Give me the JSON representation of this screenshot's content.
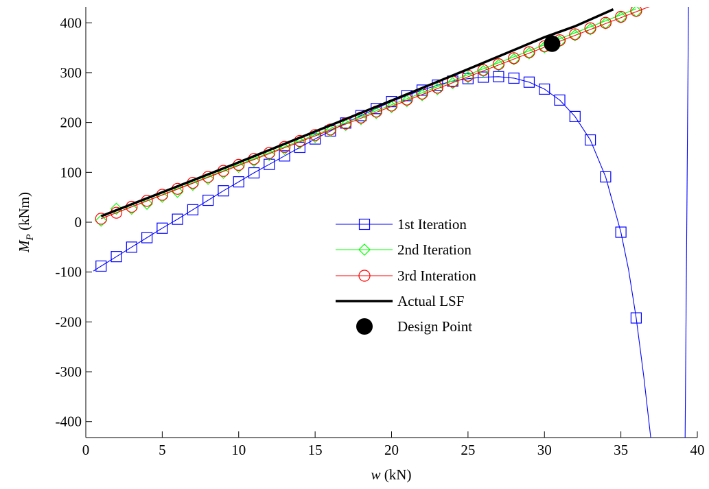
{
  "chart_data": {
    "type": "line",
    "x_var": "w",
    "x_unit": " (kN)",
    "y_var": "M",
    "y_sub": "P",
    "y_unit": " (kNm)",
    "xlim": [
      0,
      40
    ],
    "ylim": [
      -432,
      432
    ],
    "xticks": [
      0,
      5,
      10,
      15,
      20,
      25,
      30,
      35,
      40
    ],
    "yticks": [
      -400,
      -300,
      -200,
      -100,
      0,
      100,
      200,
      300,
      400
    ],
    "grid": false,
    "legend_position": "center",
    "series": [
      {
        "name": "1st Iteration",
        "color": "#0000ff",
        "marker": "square",
        "curve": {
          "x": [
            0.5,
            1,
            2,
            3,
            4,
            5,
            6,
            7,
            8,
            9,
            10,
            11,
            12,
            13,
            14,
            15,
            16,
            17,
            18,
            19,
            20,
            21,
            22,
            23,
            24,
            25,
            26,
            27,
            28,
            29,
            30,
            31,
            32,
            33,
            34,
            35,
            35.5,
            36,
            36.5,
            36.95
          ],
          "y": [
            -98,
            -88,
            -69,
            -50,
            -31,
            -12,
            6,
            25,
            44,
            63,
            81,
            99,
            116,
            133,
            150,
            167,
            183,
            199,
            214,
            228,
            242,
            254,
            265,
            275,
            283,
            288,
            291,
            292,
            289,
            281,
            267,
            245,
            212,
            165,
            91,
            -20,
            -95,
            -192,
            -310,
            -432
          ]
        },
        "markers": {
          "x": [
            1,
            2,
            3,
            4,
            5,
            6,
            7,
            8,
            9,
            10,
            11,
            12,
            13,
            14,
            15,
            16,
            17,
            18,
            19,
            20,
            21,
            22,
            23,
            24,
            25,
            26,
            27,
            28,
            29,
            30,
            31,
            32,
            33,
            34,
            35,
            36
          ],
          "y": [
            -88,
            -69,
            -50,
            -31,
            -12,
            6,
            25,
            44,
            63,
            81,
            99,
            116,
            133,
            150,
            167,
            183,
            199,
            214,
            228,
            242,
            254,
            265,
            275,
            283,
            288,
            291,
            292,
            289,
            281,
            267,
            245,
            212,
            165,
            91,
            -20,
            -192
          ]
        },
        "extra_line": {
          "x": [
            39.2,
            39.42
          ],
          "y": [
            -432,
            432
          ]
        }
      },
      {
        "name": "2nd Iteration",
        "color": "#00ff00",
        "marker": "diamond",
        "curve": {
          "x": [
            1,
            36
          ],
          "y": [
            7,
            428
          ]
        },
        "markers": {
          "x": [
            1,
            2,
            3,
            4,
            5,
            6,
            7,
            8,
            9,
            10,
            11,
            12,
            13,
            14,
            15,
            16,
            17,
            18,
            19,
            20,
            21,
            22,
            23,
            24,
            25,
            26,
            27,
            28,
            29,
            30,
            31,
            32,
            33,
            34,
            35,
            36
          ],
          "y": [
            3,
            27,
            27,
            37,
            51,
            61,
            75,
            87,
            99,
            111,
            123,
            135,
            147,
            159,
            171,
            183,
            195,
            207,
            219,
            231,
            243,
            255,
            267,
            279,
            291,
            303,
            315,
            327,
            339,
            351,
            363,
            375,
            387,
            399,
            411,
            423
          ]
        }
      },
      {
        "name": "3rd Interation",
        "color": "#ff0000",
        "marker": "circle",
        "curve": {
          "x": [
            1,
            37
          ],
          "y": [
            7,
            434
          ]
        },
        "markers": {
          "x": [
            1,
            2,
            3,
            4,
            5,
            6,
            7,
            8,
            9,
            10,
            11,
            12,
            13,
            14,
            15,
            16,
            17,
            18,
            19,
            20,
            21,
            22,
            23,
            24,
            25,
            26,
            27,
            28,
            29,
            30,
            31,
            32,
            33,
            34,
            35,
            36
          ],
          "y": [
            7,
            19,
            31,
            43,
            55,
            67,
            79,
            91,
            103,
            115,
            127,
            139,
            151,
            163,
            175,
            186,
            198,
            210,
            222,
            234,
            246,
            258,
            270,
            282,
            294,
            305,
            317,
            329,
            341,
            353,
            365,
            377,
            389,
            400,
            412,
            424
          ]
        }
      },
      {
        "name": "Actual LSF",
        "color": "#000000",
        "marker": "none",
        "curve": {
          "x": [
            1,
            5,
            10,
            15,
            20,
            25,
            30,
            32,
            34.5
          ],
          "y": [
            12,
            60,
            120,
            182,
            244,
            307,
            371,
            393,
            427
          ]
        }
      },
      {
        "name": "Design Point",
        "color": "#000000",
        "marker": "filled-circle",
        "point": {
          "x": 30.5,
          "y": 358
        }
      }
    ]
  }
}
